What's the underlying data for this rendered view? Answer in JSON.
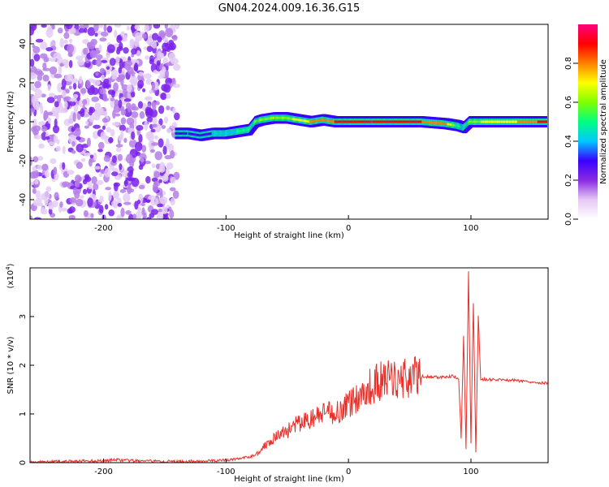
{
  "title": "GN04.2024.009.16.36.G15",
  "colormap": {
    "label": "Normalized spectral amplitude",
    "range": [
      0,
      1
    ],
    "ticks": [
      "0.0",
      "0.2",
      "0.4",
      "0.6",
      "0.8"
    ],
    "tick_values": [
      0.0,
      0.2,
      0.4,
      0.6,
      0.8
    ],
    "stops": [
      "#ffffff",
      "#e6c8f5",
      "#8a2be2",
      "#3a00ff",
      "#00c8ff",
      "#00ff80",
      "#80ff00",
      "#ffff00",
      "#ff8000",
      "#ff0000",
      "#ff0080"
    ]
  },
  "chart_data": [
    {
      "type": "heatmap",
      "title": "",
      "xlabel": "Height of straight line (km)",
      "ylabel": "Frequency (Hz)",
      "xlim": [
        -260,
        163
      ],
      "ylim": [
        -50,
        50
      ],
      "xticks": [
        -200,
        -100,
        0,
        100
      ],
      "xtick_labels": [
        "-200",
        "-100",
        "0",
        "100"
      ],
      "yticks": [
        -40,
        -20,
        0,
        20,
        40
      ],
      "ytick_labels": [
        "-40",
        "-20",
        "0",
        "20",
        "40"
      ],
      "grid": false,
      "ridge": {
        "description_values": "dominant frequency ridge (Hz) vs height (km)",
        "x": [
          -140,
          -130,
          -120,
          -110,
          -100,
          -90,
          -80,
          -75,
          -70,
          -60,
          -50,
          -40,
          -30,
          -20,
          -10,
          0,
          20,
          40,
          60,
          80,
          90,
          95,
          100,
          110,
          130,
          163
        ],
        "y": [
          -6,
          -6,
          -7,
          -6,
          -6,
          -5,
          -4,
          0,
          1,
          2,
          2,
          1,
          0,
          1,
          0,
          0,
          0,
          0,
          0,
          -1,
          -2,
          -3,
          0,
          0,
          0,
          0
        ],
        "amplitude": [
          0.3,
          0.35,
          0.3,
          0.35,
          0.4,
          0.45,
          0.5,
          0.55,
          0.6,
          0.65,
          0.6,
          0.7,
          0.75,
          0.8,
          0.85,
          0.9,
          0.95,
          0.9,
          0.85,
          0.8,
          0.5,
          0.4,
          0.6,
          0.65,
          0.7,
          0.9
        ]
      },
      "noise_region": [
        -260,
        -140
      ]
    },
    {
      "type": "line",
      "title": "",
      "xlabel": "Height of straight line (km)",
      "ylabel": "SNR (10 * v/v)",
      "y_scale_label": "(x10",
      "y_scale_exp": "4",
      "xlim": [
        -260,
        163
      ],
      "ylim": [
        0,
        4
      ],
      "xticks": [
        -200,
        -100,
        0,
        100
      ],
      "xtick_labels": [
        "-200",
        "-100",
        "0",
        "100"
      ],
      "yticks": [
        0,
        1,
        2,
        3
      ],
      "ytick_labels": [
        "0",
        "1",
        "2",
        "3"
      ],
      "grid": false,
      "series": [
        {
          "color": "#e8302a",
          "x": [
            -260,
            -240,
            -220,
            -200,
            -190,
            -180,
            -160,
            -140,
            -120,
            -100,
            -90,
            -80,
            -75,
            -70,
            -65,
            -60,
            -55,
            -50,
            -45,
            -40,
            -35,
            -30,
            -25,
            -20,
            -15,
            -10,
            -5,
            0,
            5,
            10,
            15,
            20,
            25,
            30,
            40,
            50,
            60,
            70,
            80,
            85,
            90,
            92,
            94,
            96,
            98,
            100,
            102,
            104,
            106,
            108,
            110,
            120,
            130,
            140,
            150,
            163
          ],
          "y": [
            0.01,
            0.02,
            0.03,
            0.04,
            0.06,
            0.04,
            0.03,
            0.02,
            0.03,
            0.05,
            0.08,
            0.12,
            0.18,
            0.3,
            0.45,
            0.5,
            0.6,
            0.65,
            0.75,
            0.8,
            0.85,
            0.9,
            0.95,
            1.0,
            1.02,
            1.05,
            1.1,
            1.2,
            1.3,
            1.4,
            1.5,
            1.6,
            1.65,
            1.7,
            1.72,
            1.75,
            1.77,
            1.76,
            1.75,
            1.78,
            1.7,
            0.5,
            2.6,
            0.3,
            3.9,
            0.4,
            3.3,
            0.2,
            3.0,
            1.7,
            1.71,
            1.7,
            1.7,
            1.68,
            1.66,
            1.63
          ]
        }
      ]
    }
  ]
}
